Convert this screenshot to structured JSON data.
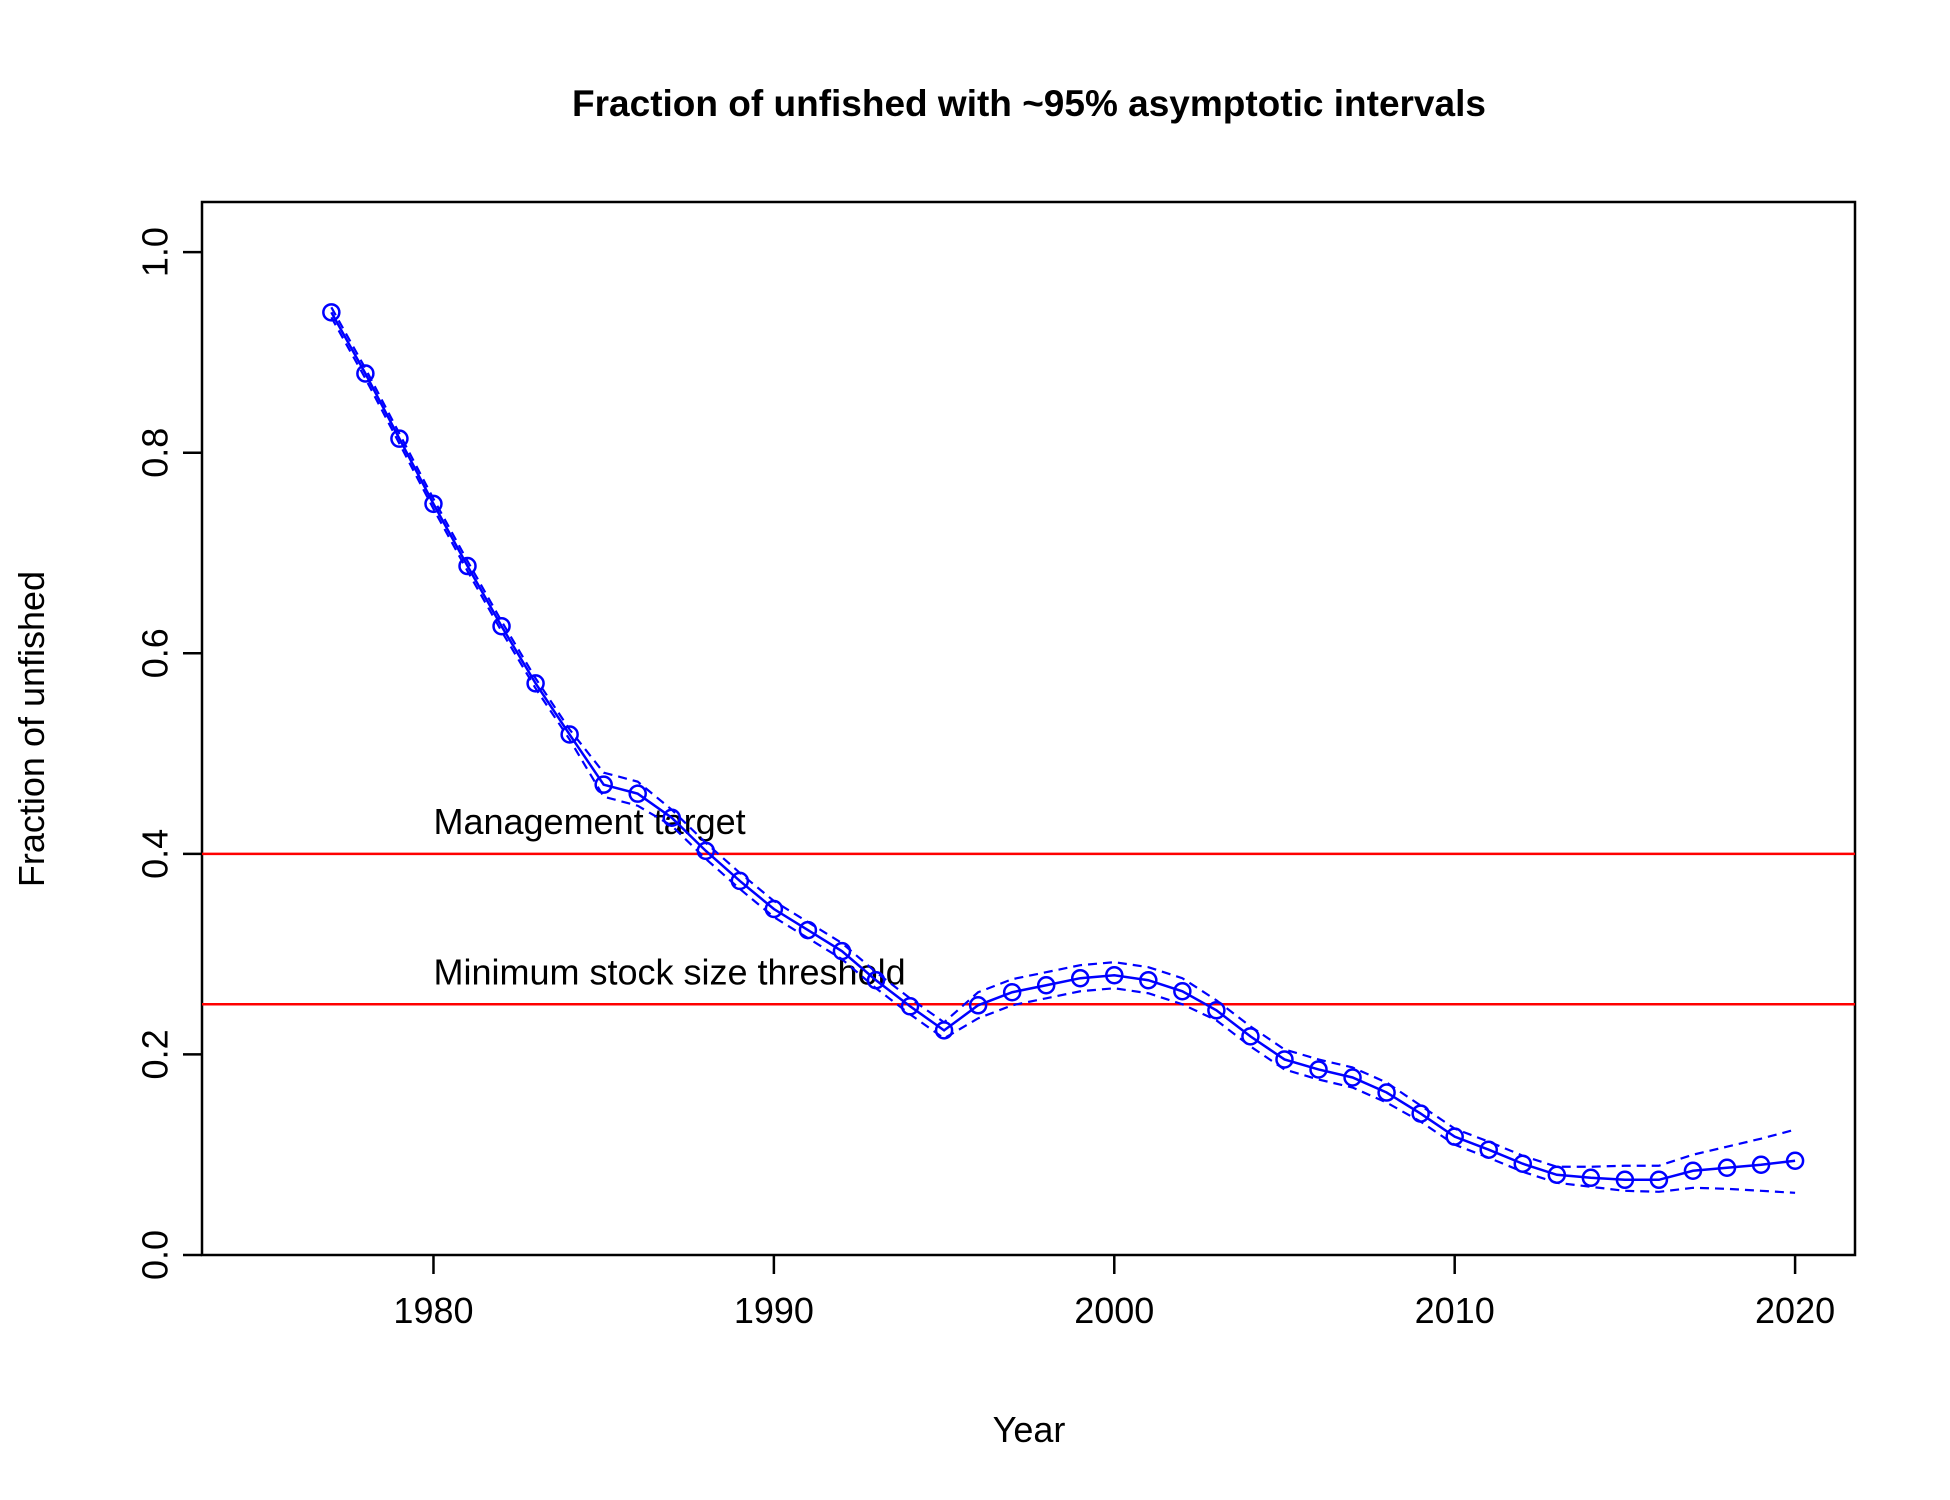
{
  "chart_data": {
    "type": "line",
    "title": "Fraction of unfished with ~95% asymptotic intervals",
    "xlabel": "Year",
    "ylabel": "Fraction of unfished",
    "x": [
      1977,
      1978,
      1979,
      1980,
      1981,
      1982,
      1983,
      1984,
      1985,
      1986,
      1987,
      1988,
      1989,
      1990,
      1991,
      1992,
      1993,
      1994,
      1995,
      1996,
      1997,
      1998,
      1999,
      2000,
      2001,
      2002,
      2003,
      2004,
      2005,
      2006,
      2007,
      2008,
      2009,
      2010,
      2011,
      2012,
      2013,
      2014,
      2015,
      2016,
      2017,
      2018,
      2019,
      2020
    ],
    "series": [
      {
        "color": "#0000ff",
        "values": [
          0.94,
          0.879,
          0.814,
          0.749,
          0.687,
          0.627,
          0.57,
          0.519,
          0.469,
          0.46,
          0.436,
          0.403,
          0.373,
          0.345,
          0.324,
          0.303,
          0.274,
          0.248,
          0.224,
          0.249,
          0.262,
          0.269,
          0.276,
          0.279,
          0.274,
          0.263,
          0.244,
          0.218,
          0.195,
          0.185,
          0.177,
          0.162,
          0.141,
          0.118,
          0.105,
          0.091,
          0.08,
          0.077,
          0.075,
          0.075,
          0.084,
          0.087,
          0.09,
          0.094
        ],
        "upper": [
          0.945,
          0.884,
          0.819,
          0.754,
          0.692,
          0.632,
          0.575,
          0.524,
          0.481,
          0.472,
          0.444,
          0.411,
          0.381,
          0.353,
          0.332,
          0.311,
          0.282,
          0.256,
          0.232,
          0.262,
          0.275,
          0.282,
          0.289,
          0.292,
          0.287,
          0.276,
          0.254,
          0.228,
          0.205,
          0.195,
          0.187,
          0.172,
          0.149,
          0.126,
          0.113,
          0.099,
          0.088,
          0.088,
          0.089,
          0.089,
          0.1,
          0.108,
          0.116,
          0.125
        ],
        "lower": [
          0.935,
          0.874,
          0.809,
          0.744,
          0.682,
          0.622,
          0.565,
          0.514,
          0.457,
          0.448,
          0.428,
          0.395,
          0.365,
          0.337,
          0.316,
          0.295,
          0.266,
          0.24,
          0.216,
          0.236,
          0.249,
          0.256,
          0.263,
          0.266,
          0.261,
          0.25,
          0.234,
          0.208,
          0.185,
          0.175,
          0.167,
          0.152,
          0.133,
          0.11,
          0.097,
          0.083,
          0.072,
          0.068,
          0.064,
          0.063,
          0.067,
          0.066,
          0.064,
          0.062
        ]
      }
    ],
    "hlines": [
      {
        "value": 0.4,
        "label": "Management target",
        "color": "#ff0000"
      },
      {
        "value": 0.25,
        "label": "Minimum stock size threshold",
        "color": "#ff0000"
      }
    ],
    "hline_label_x": 1980,
    "xlim": [
      1973.2,
      2021.76
    ],
    "ylim": [
      0,
      1.05
    ],
    "xticks": [
      1980,
      1990,
      2000,
      2010,
      2020
    ],
    "yticks": [
      {
        "value": 0,
        "label": "0.0"
      },
      0.2,
      0.4,
      0.6,
      0.8,
      {
        "value": 1,
        "label": "1.0"
      }
    ]
  }
}
